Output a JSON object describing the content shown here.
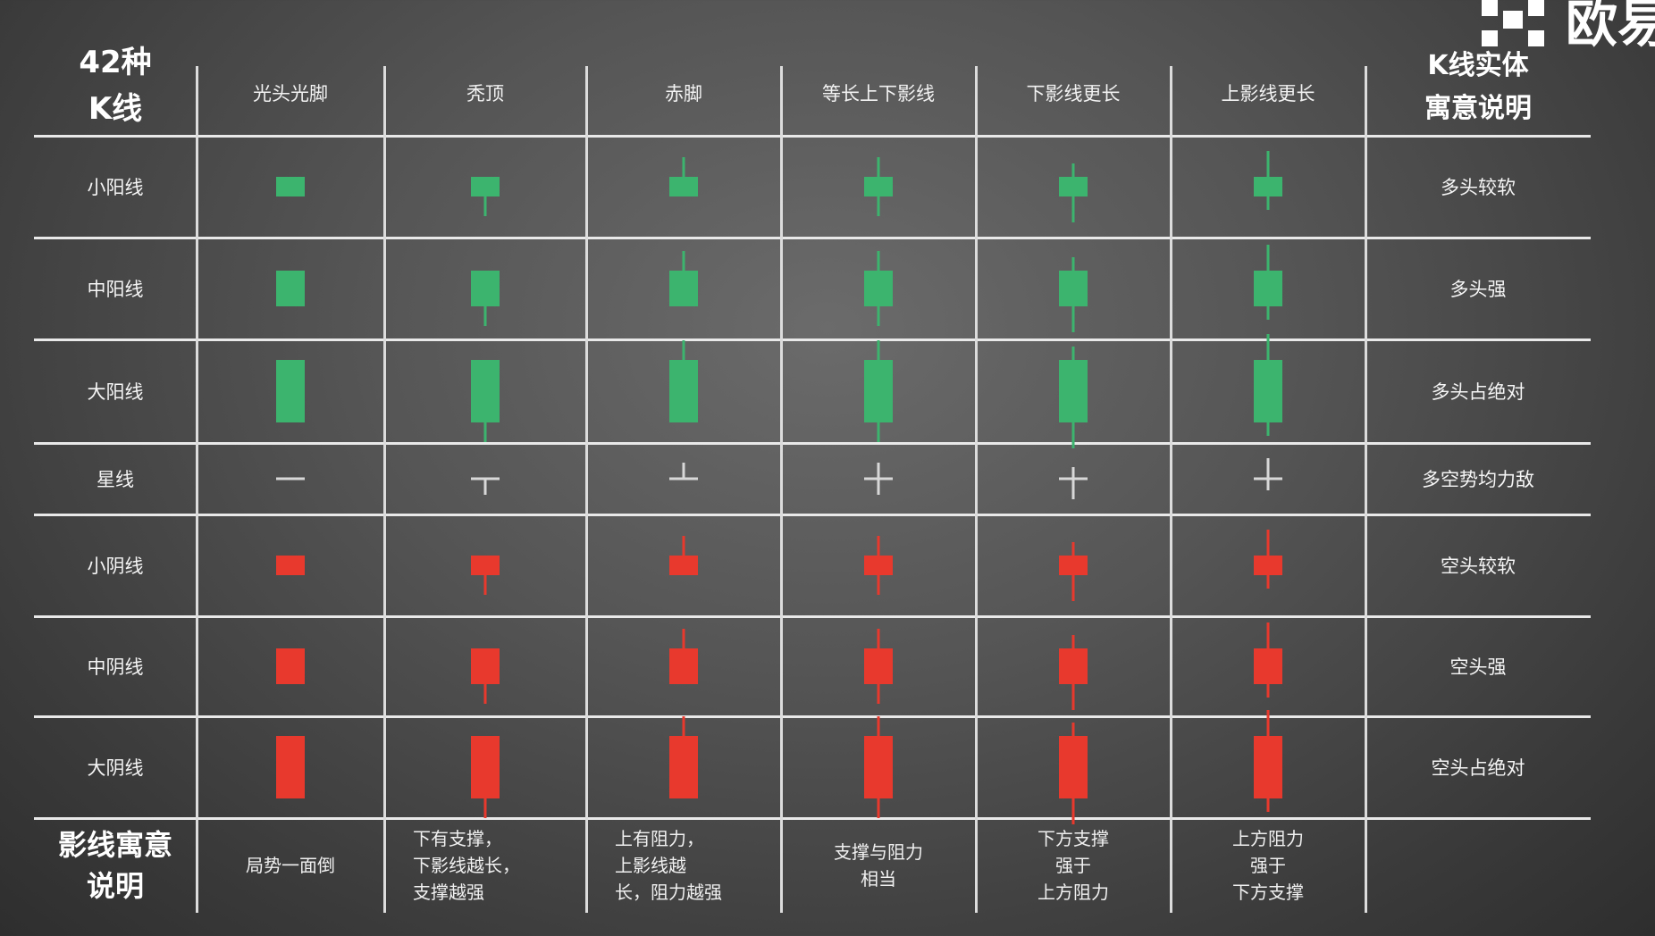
{
  "brand": {
    "logo_text": "欧易"
  },
  "corner_title": "42种\nK线",
  "columns": [
    "光头光脚",
    "秃顶",
    "赤脚",
    "等长上下影线",
    "下影线更长",
    "上影线更长"
  ],
  "meaning_header": "K线实体\n寓意说明",
  "rows": [
    {
      "label": "小阳线",
      "meaning": "多头较软"
    },
    {
      "label": "中阳线",
      "meaning": "多头强"
    },
    {
      "label": "大阳线",
      "meaning": "多头占绝对"
    },
    {
      "label": "星线",
      "meaning": "多空势均力敌"
    },
    {
      "label": "小阴线",
      "meaning": "空头较软"
    },
    {
      "label": "中阴线",
      "meaning": "空头强"
    },
    {
      "label": "大阴线",
      "meaning": "空头占绝对"
    }
  ],
  "shadow_row": {
    "label": "影线寓意\n说明",
    "notes": [
      "局势一面倒",
      "下有支撑，\n下影线越长，\n支撑越强",
      "上有阻力，\n上影线越\n长，阻力越强",
      "支撑与阻力\n相当",
      "下方支撑\n强于\n上方阻力",
      "上方阻力\n强于\n下方支撑"
    ]
  },
  "colors": {
    "bull": "#3cb46e",
    "bear": "#e8392d",
    "doji": "#d8d8d8",
    "grid": "#e9e9e9"
  }
}
